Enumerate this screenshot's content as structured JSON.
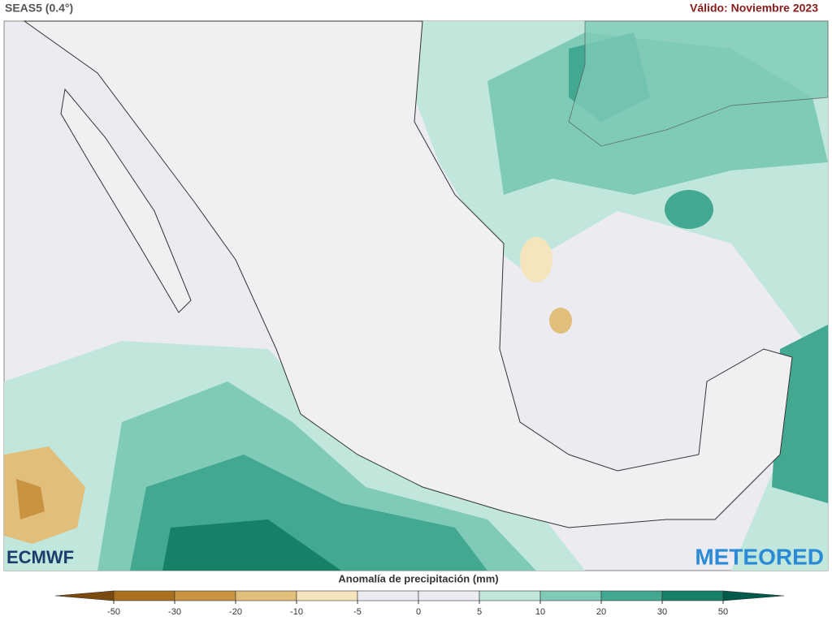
{
  "header": {
    "title": "SEAS5 (0.4°)",
    "valid": "Válido: Noviembre 2023"
  },
  "logos": {
    "left": "ECMWF",
    "right": "METEORED"
  },
  "colorbar": {
    "label": "Anomalía de precipitación (mm)",
    "ticks": [
      -50,
      -30,
      -20,
      -10,
      -5,
      0,
      5,
      10,
      20,
      30,
      50
    ],
    "colors": [
      "#7a4a10",
      "#a9711f",
      "#c99342",
      "#e1bf7a",
      "#f4e5bd",
      "#ecebf2",
      "#ecebf2",
      "#c1e7dd",
      "#7fcbb8",
      "#42a892",
      "#168069",
      "#005a4b"
    ]
  }
}
